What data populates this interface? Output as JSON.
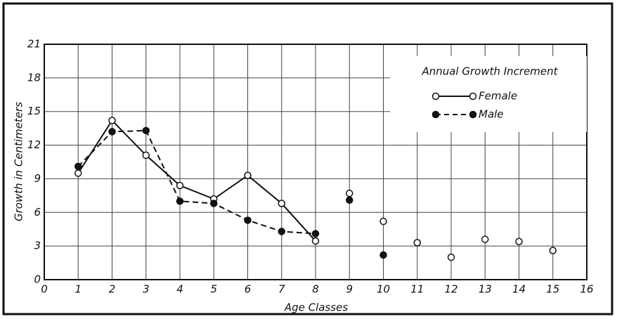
{
  "chart_data": {
    "type": "line",
    "xlabel": "Age Classes",
    "ylabel": "Growth in Centimeters",
    "legend_title": "Annual Growth Increment",
    "x": [
      1,
      2,
      3,
      4,
      5,
      6,
      7,
      8,
      9,
      10,
      11,
      12,
      13,
      14,
      15
    ],
    "series": [
      {
        "name": "Female",
        "color": "#111111",
        "marker": "open",
        "dash": false,
        "connect": true,
        "values": [
          9.5,
          14.2,
          11.1,
          8.4,
          7.2,
          9.3,
          6.8,
          3.45,
          null,
          null,
          null,
          null,
          null,
          null,
          null
        ]
      },
      {
        "name": "Male",
        "color": "#111111",
        "marker": "filled",
        "dash": true,
        "connect": true,
        "values": [
          10.1,
          13.2,
          13.3,
          7.0,
          6.8,
          5.3,
          4.3,
          4.1,
          null,
          null,
          null,
          null,
          null,
          null,
          null
        ]
      },
      {
        "color": "#111111",
        "marker": "open",
        "connect": false,
        "values": [
          null,
          null,
          null,
          null,
          null,
          null,
          null,
          null,
          7.7,
          5.2,
          3.3,
          2.0,
          3.6,
          3.4,
          2.6
        ]
      },
      {
        "color": "#111111",
        "marker": "filled",
        "connect": false,
        "values": [
          null,
          null,
          null,
          null,
          null,
          null,
          null,
          null,
          7.1,
          2.2,
          null,
          null,
          null,
          null,
          null
        ]
      }
    ],
    "xlim": [
      0,
      16
    ],
    "xticks": [
      0,
      1,
      2,
      3,
      4,
      5,
      6,
      7,
      8,
      9,
      10,
      11,
      12,
      13,
      14,
      15,
      16
    ],
    "ylim": [
      0,
      21
    ],
    "yticks": [
      0,
      3,
      6,
      9,
      12,
      15,
      18,
      21
    ],
    "grid": true,
    "legend": "upper right"
  }
}
